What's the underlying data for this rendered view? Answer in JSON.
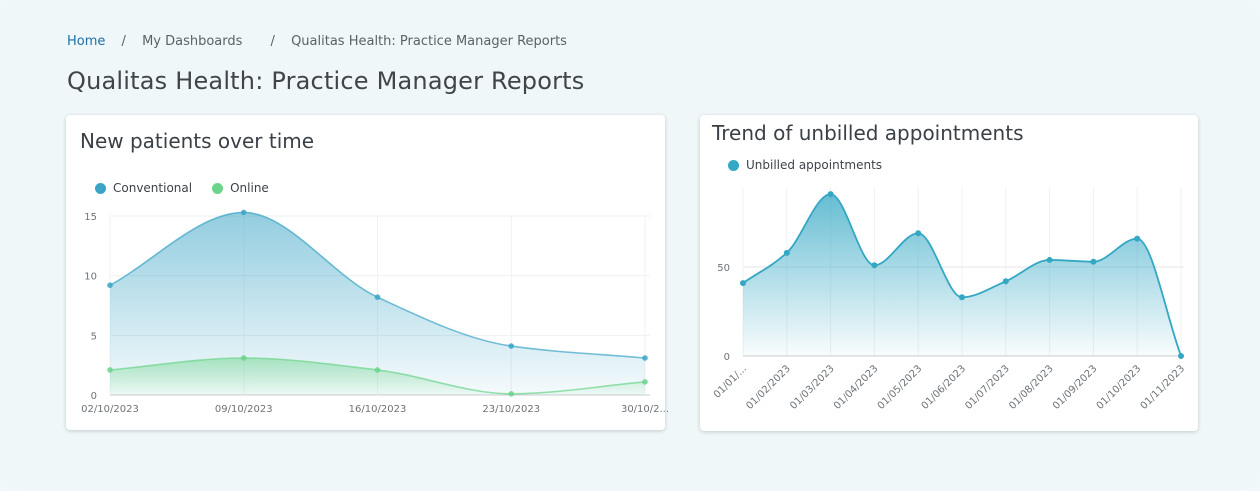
{
  "breadcrumb": {
    "home": "Home",
    "sep": "/",
    "dashboards": "My Dashboards",
    "current": "Qualitas Health: Practice Manager Reports"
  },
  "page": {
    "title": "Qualitas Health: Practice Manager Reports"
  },
  "colors": {
    "conventional": "#3aa4c6",
    "online": "#6bd48a",
    "unbilled": "#33a7c4",
    "link": "#1f6fa6"
  },
  "charts": [
    {
      "title": "New patients over time",
      "chart_data": {
        "type": "area",
        "categories": [
          "02/10/2023",
          "09/10/2023",
          "16/10/2023",
          "23/10/2023",
          "30/10/2..."
        ],
        "series": [
          {
            "name": "Conventional",
            "values": [
              9.2,
              15.3,
              8.2,
              4.1,
              3.1
            ]
          },
          {
            "name": "Online",
            "values": [
              2.1,
              3.1,
              2.1,
              0.1,
              1.1
            ]
          }
        ],
        "ylim": [
          0,
          15
        ],
        "yticks": [
          0,
          5,
          10,
          15
        ],
        "grid": true,
        "legend": "top-left"
      }
    },
    {
      "title": "Trend of unbilled appointments",
      "chart_data": {
        "type": "area",
        "categories": [
          "01/01/...",
          "01/02/2023",
          "01/03/2023",
          "01/04/2023",
          "01/05/2023",
          "01/06/2023",
          "01/07/2023",
          "01/08/2023",
          "01/09/2023",
          "01/10/2023",
          "01/11/2023"
        ],
        "series": [
          {
            "name": "Unbilled appointments",
            "values": [
              41,
              58,
              91,
              51,
              69,
              33,
              42,
              54,
              53,
              66,
              0
            ]
          }
        ],
        "ylim": [
          0,
          95
        ],
        "yticks": [
          0,
          50
        ],
        "grid": true,
        "legend": "top-left"
      }
    }
  ]
}
